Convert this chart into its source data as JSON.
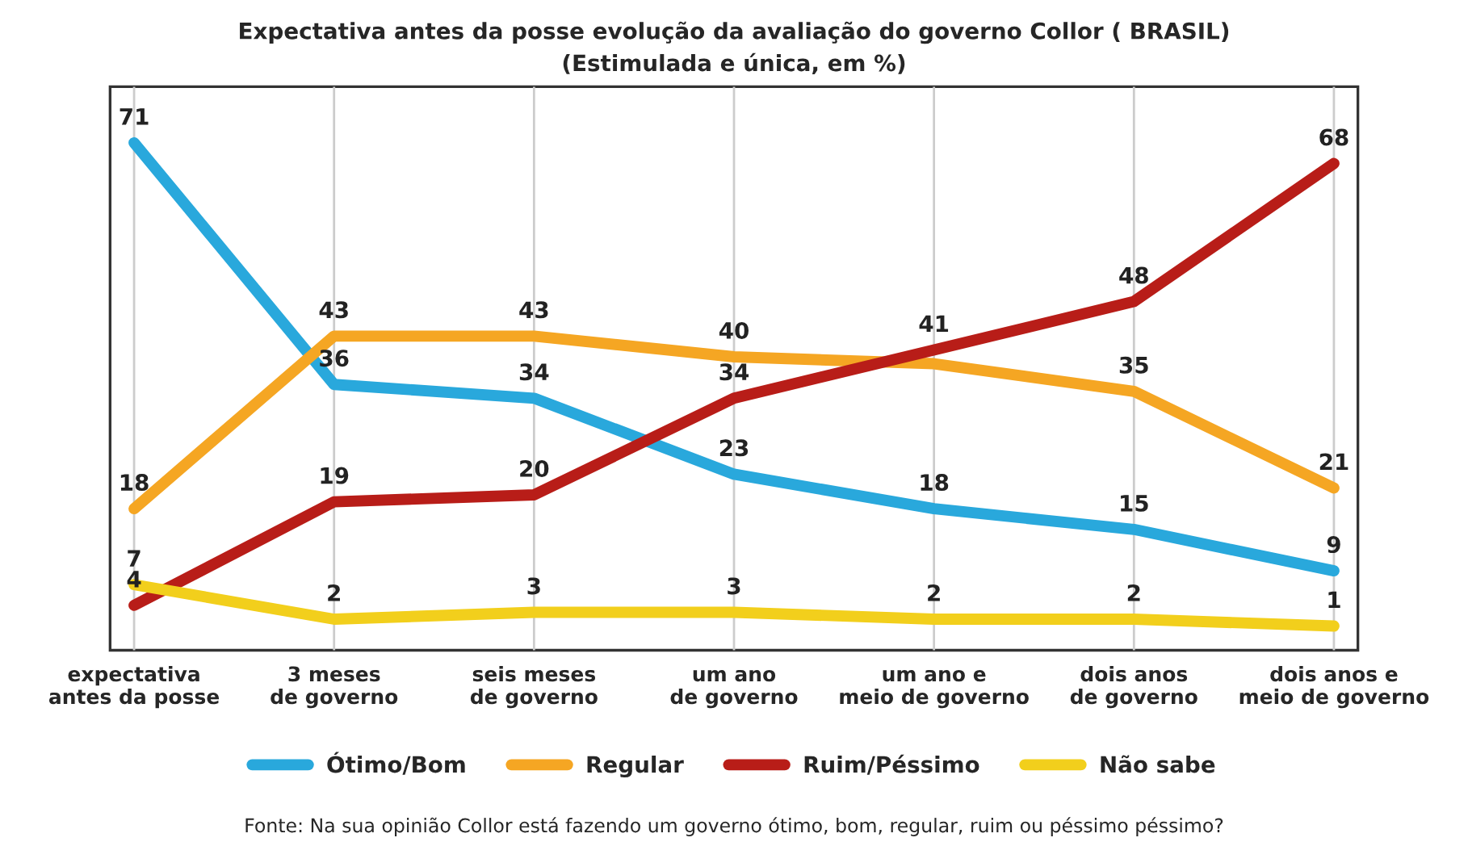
{
  "chart_data": {
    "type": "line",
    "title": "Expectativa antes da posse evolução da avaliação do governo Collor ( BRASIL)",
    "subtitle": "(Estimulada e única, em %)",
    "categories": [
      "expectativa\nantes da posse",
      "3 meses\nde governo",
      "seis meses\nde governo",
      "um ano\nde governo",
      "um ano e\nmeio de governo",
      "dois anos\nde governo",
      "dois anos e\nmeio de governo"
    ],
    "series": [
      {
        "name": "Ótimo/Bom",
        "color": "#29a8dc",
        "values": [
          71,
          36,
          34,
          23,
          18,
          15,
          9
        ],
        "value_labels": [
          "71",
          "36",
          "34",
          "23",
          "18",
          "15",
          "9"
        ]
      },
      {
        "name": "Regular",
        "color": "#f5a623",
        "values": [
          18,
          43,
          43,
          40,
          39,
          35,
          21
        ],
        "value_labels": [
          "18",
          "43",
          "43",
          "40",
          null,
          "35",
          "21"
        ]
      },
      {
        "name": "Ruim/Péssimo",
        "color": "#b81d18",
        "values": [
          4,
          19,
          20,
          34,
          41,
          48,
          68
        ],
        "value_labels": [
          "4",
          "19",
          "20",
          "34",
          "41",
          "48",
          "68"
        ]
      },
      {
        "name": "Não sabe",
        "color": "#f2cf1c",
        "values": [
          7,
          2,
          3,
          3,
          2,
          2,
          1
        ],
        "value_labels": [
          "7",
          "2",
          "3",
          "3",
          "2",
          "2",
          "1"
        ]
      }
    ],
    "grid": "x",
    "legend": "bottom",
    "marker": "none",
    "line_style": "solid",
    "annotations": [
      "Fonte: Na sua opinião Collor está fazendo um governo ótimo, bom, regular, ruim ou péssimo péssimo?"
    ]
  }
}
